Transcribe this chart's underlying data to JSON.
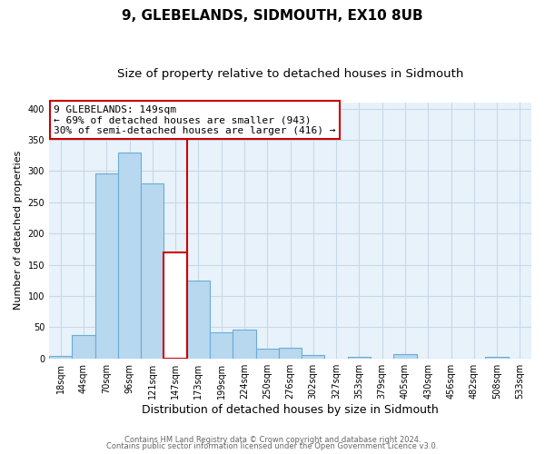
{
  "title": "9, GLEBELANDS, SIDMOUTH, EX10 8UB",
  "subtitle": "Size of property relative to detached houses in Sidmouth",
  "xlabel": "Distribution of detached houses by size in Sidmouth",
  "ylabel": "Number of detached properties",
  "footer_lines": [
    "Contains HM Land Registry data © Crown copyright and database right 2024.",
    "Contains public sector information licensed under the Open Government Licence v3.0."
  ],
  "bin_labels": [
    "18sqm",
    "44sqm",
    "70sqm",
    "96sqm",
    "121sqm",
    "147sqm",
    "173sqm",
    "199sqm",
    "224sqm",
    "250sqm",
    "276sqm",
    "302sqm",
    "327sqm",
    "353sqm",
    "379sqm",
    "405sqm",
    "430sqm",
    "456sqm",
    "482sqm",
    "508sqm",
    "533sqm"
  ],
  "bar_heights": [
    4,
    37,
    296,
    330,
    280,
    170,
    124,
    42,
    46,
    16,
    17,
    5,
    0,
    3,
    0,
    7,
    0,
    0,
    0,
    3,
    0
  ],
  "bar_color": "#b8d8f0",
  "bar_edge_color": "#6aadd5",
  "highlight_bar_index": 5,
  "highlight_color": "#cc0000",
  "annotation_text": "9 GLEBELANDS: 149sqm\n← 69% of detached houses are smaller (943)\n30% of semi-detached houses are larger (416) →",
  "annotation_box_color": "#ffffff",
  "annotation_box_edge_color": "#cc0000",
  "ylim": [
    0,
    410
  ],
  "yticks": [
    0,
    50,
    100,
    150,
    200,
    250,
    300,
    350,
    400
  ],
  "ax_facecolor": "#e8f2fa",
  "background_color": "#ffffff",
  "grid_color": "#c8d8e8",
  "title_fontsize": 11,
  "subtitle_fontsize": 9.5,
  "xlabel_fontsize": 9,
  "ylabel_fontsize": 8,
  "tick_fontsize": 7,
  "annotation_fontsize": 8,
  "footer_fontsize": 6
}
